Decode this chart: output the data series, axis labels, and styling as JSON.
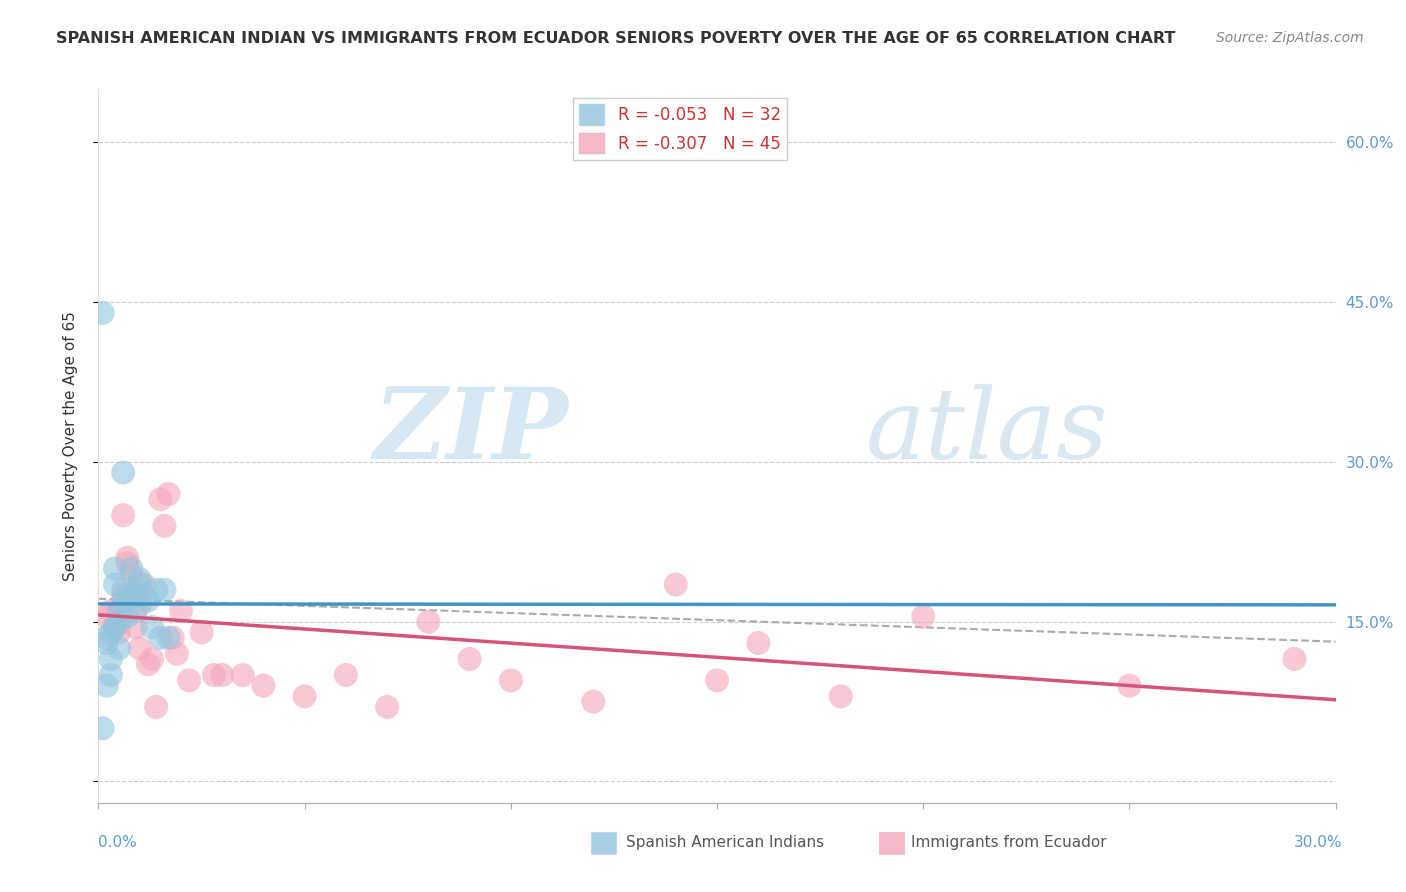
{
  "title": "SPANISH AMERICAN INDIAN VS IMMIGRANTS FROM ECUADOR SENIORS POVERTY OVER THE AGE OF 65 CORRELATION CHART",
  "source": "Source: ZipAtlas.com",
  "ylabel": "Seniors Poverty Over the Age of 65",
  "xlim": [
    0.0,
    0.3
  ],
  "ylim": [
    -0.02,
    0.65
  ],
  "yticks": [
    0.0,
    0.15,
    0.3,
    0.45,
    0.6
  ],
  "ytick_labels": [
    "",
    "15.0%",
    "30.0%",
    "45.0%",
    "60.0%"
  ],
  "legend_r1": "R = -0.053",
  "legend_n1": "N = 32",
  "legend_r2": "R = -0.307",
  "legend_n2": "N = 45",
  "blue_color": "#92c5de",
  "pink_color": "#f4a6b8",
  "blue_line_color": "#4393c3",
  "pink_line_color": "#d6537a",
  "watermark_zip": "ZIP",
  "watermark_atlas": "atlas",
  "blue_x": [
    0.001,
    0.001,
    0.002,
    0.002,
    0.002,
    0.003,
    0.003,
    0.003,
    0.004,
    0.004,
    0.004,
    0.005,
    0.005,
    0.005,
    0.006,
    0.006,
    0.006,
    0.007,
    0.007,
    0.008,
    0.008,
    0.009,
    0.009,
    0.01,
    0.01,
    0.011,
    0.012,
    0.013,
    0.014,
    0.015,
    0.016,
    0.017
  ],
  "blue_y": [
    0.44,
    0.05,
    0.135,
    0.13,
    0.09,
    0.14,
    0.115,
    0.1,
    0.185,
    0.2,
    0.145,
    0.15,
    0.16,
    0.125,
    0.18,
    0.17,
    0.29,
    0.17,
    0.155,
    0.2,
    0.175,
    0.175,
    0.16,
    0.185,
    0.19,
    0.175,
    0.17,
    0.145,
    0.18,
    0.135,
    0.18,
    0.135
  ],
  "pink_x": [
    0.002,
    0.003,
    0.004,
    0.005,
    0.005,
    0.006,
    0.006,
    0.007,
    0.007,
    0.008,
    0.008,
    0.009,
    0.009,
    0.01,
    0.01,
    0.011,
    0.012,
    0.013,
    0.014,
    0.015,
    0.016,
    0.017,
    0.018,
    0.019,
    0.02,
    0.022,
    0.025,
    0.028,
    0.03,
    0.035,
    0.04,
    0.05,
    0.06,
    0.07,
    0.08,
    0.09,
    0.1,
    0.12,
    0.14,
    0.15,
    0.16,
    0.18,
    0.2,
    0.25,
    0.29
  ],
  "pink_y": [
    0.155,
    0.16,
    0.145,
    0.16,
    0.14,
    0.175,
    0.25,
    0.21,
    0.205,
    0.195,
    0.175,
    0.145,
    0.175,
    0.165,
    0.125,
    0.185,
    0.11,
    0.115,
    0.07,
    0.265,
    0.24,
    0.27,
    0.135,
    0.12,
    0.16,
    0.095,
    0.14,
    0.1,
    0.1,
    0.1,
    0.09,
    0.08,
    0.1,
    0.07,
    0.15,
    0.115,
    0.095,
    0.075,
    0.185,
    0.095,
    0.13,
    0.08,
    0.155,
    0.09,
    0.115
  ]
}
